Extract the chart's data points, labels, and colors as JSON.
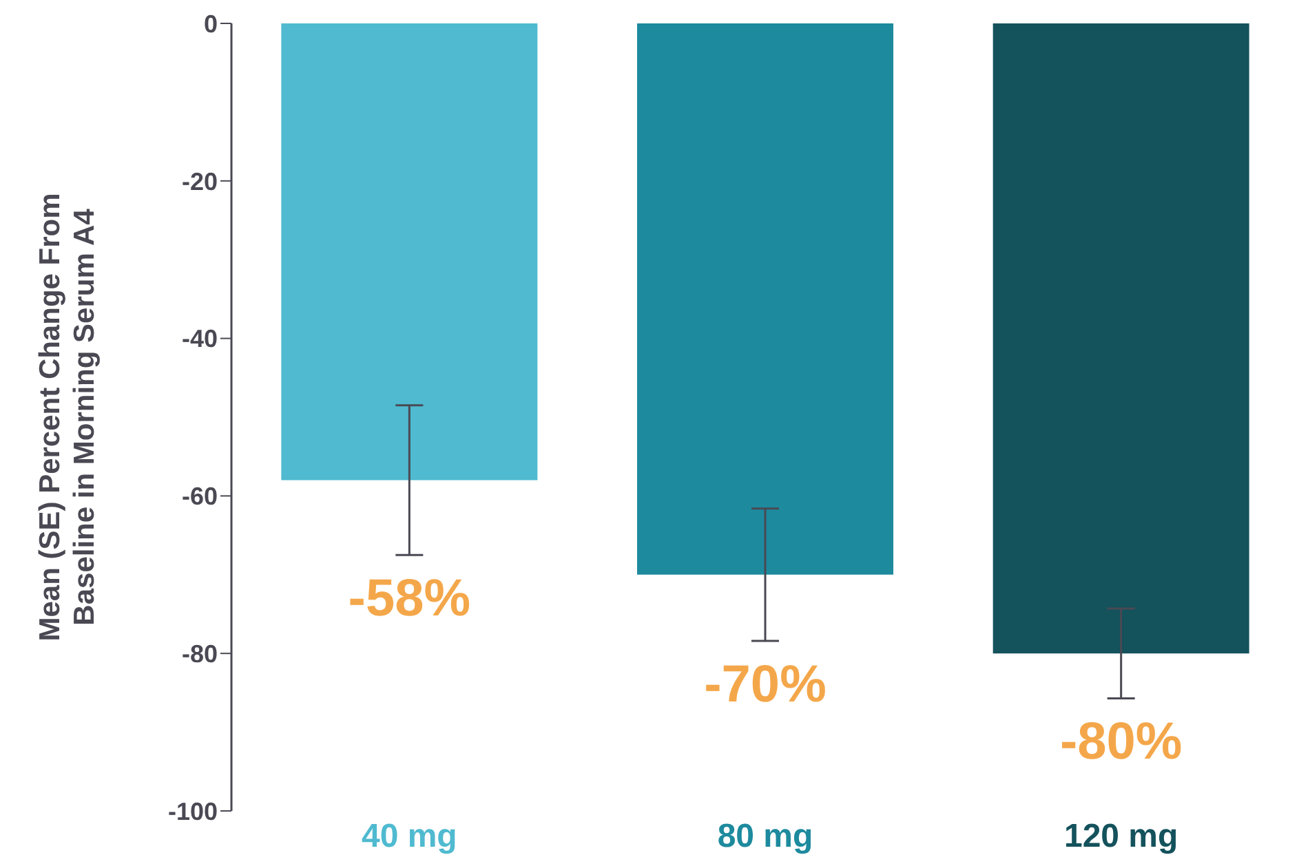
{
  "chart_data": {
    "type": "bar",
    "ylabel": "Mean (SE) Percent Change From Baseline in Morning Serum A4",
    "categories": [
      "40 mg",
      "80 mg",
      "120 mg"
    ],
    "values": [
      -58,
      -70,
      -80
    ],
    "colors": [
      "#4fbad0",
      "#1d8a9e",
      "#14525c"
    ],
    "errors": [
      9.5,
      8.4,
      5.7
    ],
    "value_labels": [
      "-58%",
      "-70%",
      "-80%"
    ],
    "ylim": [
      -100,
      0
    ],
    "yticks": [
      -100,
      -80,
      -60,
      -40,
      -20,
      0
    ],
    "grid": false,
    "legend": false
  }
}
